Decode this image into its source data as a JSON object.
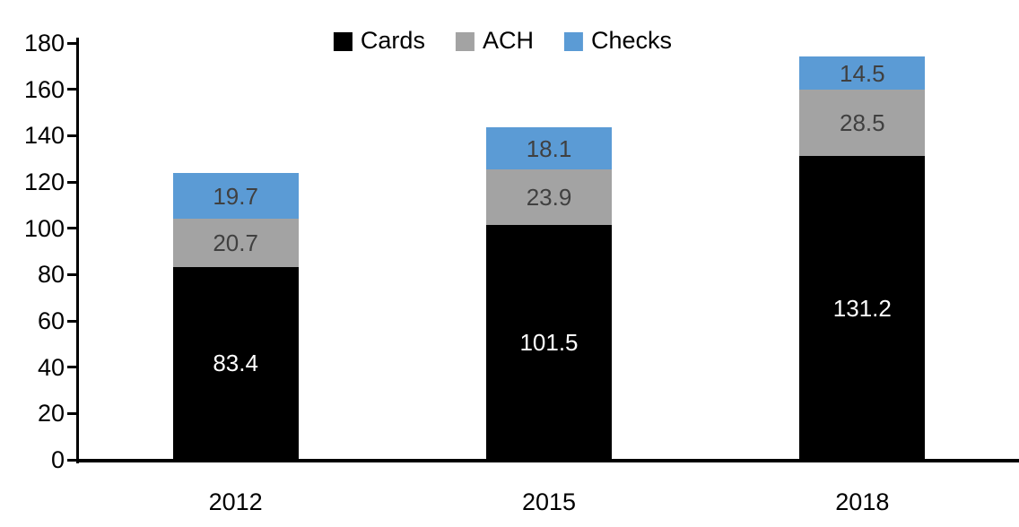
{
  "chart_data": {
    "type": "bar",
    "stacked": true,
    "title": "",
    "xlabel": "",
    "ylabel": "",
    "categories": [
      "2012",
      "2015",
      "2018"
    ],
    "series": [
      {
        "name": "Cards",
        "color": "#000000",
        "label_color": "#ffffff",
        "values": [
          83.4,
          101.5,
          131.2
        ]
      },
      {
        "name": "ACH",
        "color": "#a3a3a3",
        "label_color": "#404040",
        "values": [
          20.7,
          23.9,
          28.5
        ]
      },
      {
        "name": "Checks",
        "color": "#5b9bd5",
        "label_color": "#404040",
        "values": [
          19.7,
          18.1,
          14.5
        ]
      }
    ],
    "totals": [
      123.8,
      143.5,
      174.2
    ],
    "ylim": [
      0,
      180
    ],
    "yticks": [
      0,
      20,
      40,
      60,
      80,
      100,
      120,
      140,
      160,
      180
    ],
    "grid": false,
    "legend_position": "top-center",
    "axis_color": "#000000",
    "tick_label_color": "#000000"
  }
}
